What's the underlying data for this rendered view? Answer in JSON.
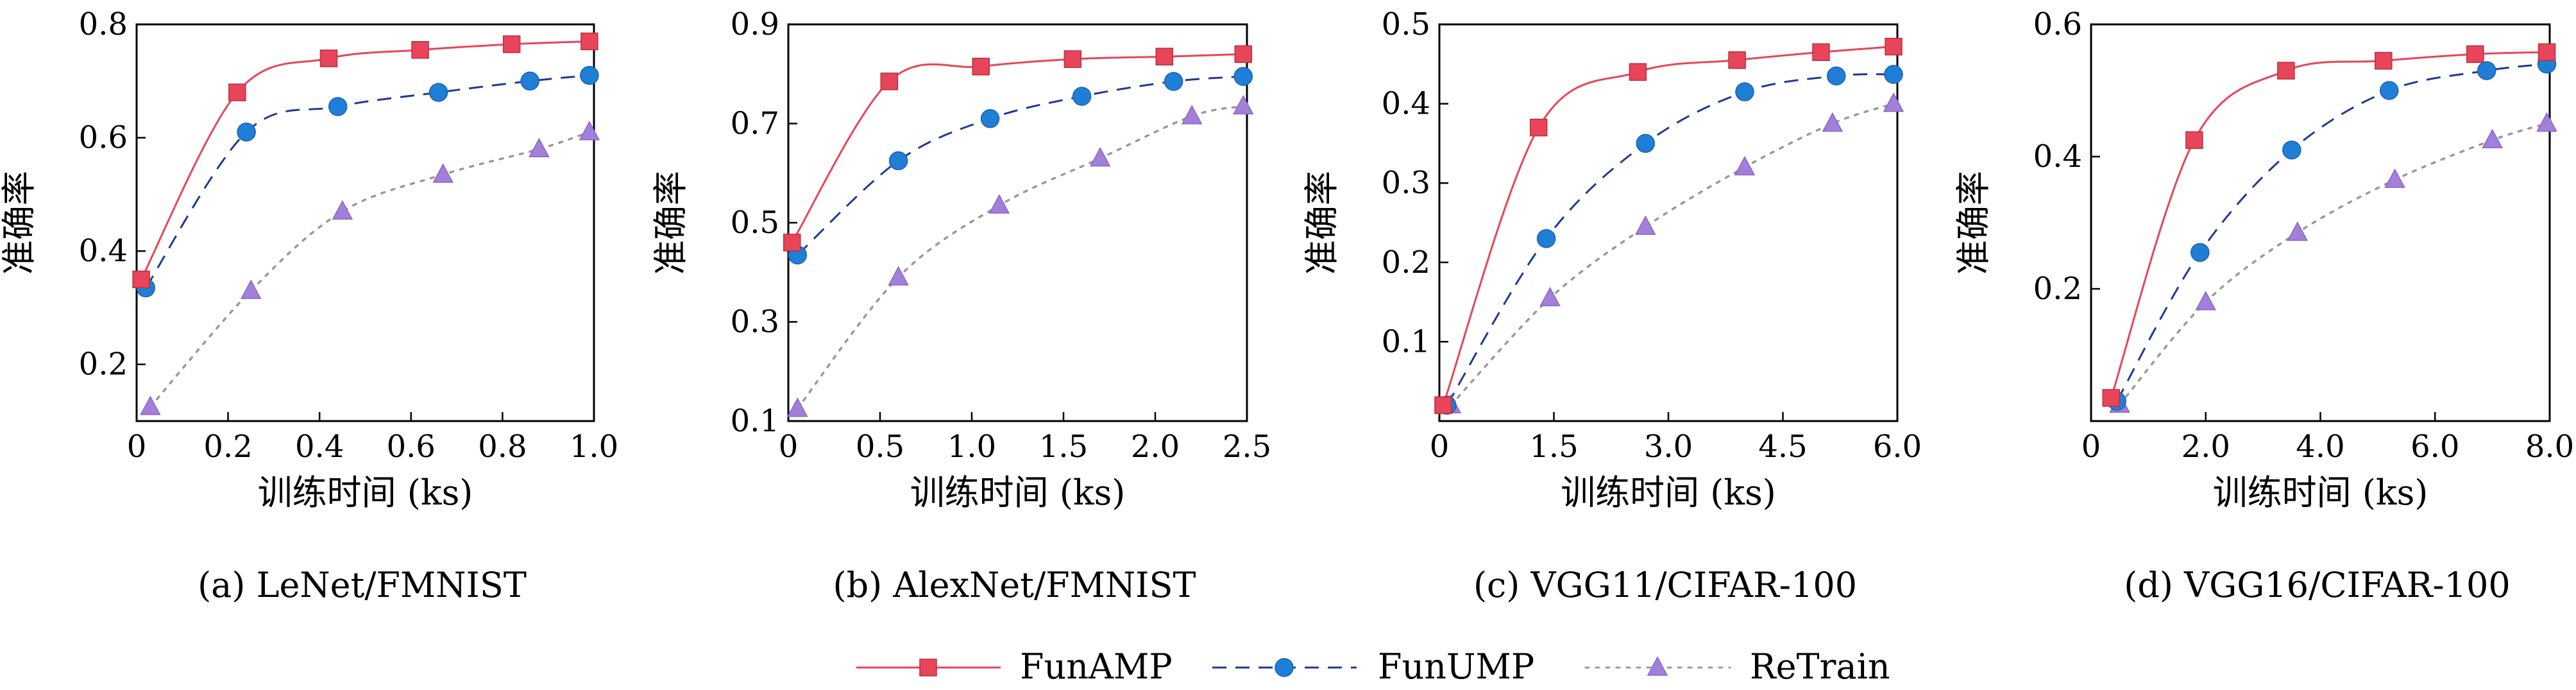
{
  "legend": {
    "entries": [
      {
        "label": "FunAMP",
        "color": "#e8455a",
        "marker_color": "#e8455a",
        "marker": "square",
        "dash": "solid"
      },
      {
        "label": "FunUMP",
        "color": "#1f3a93",
        "marker_color": "#1f7fd6",
        "marker": "circle",
        "dash": "dashed"
      },
      {
        "label": "ReTrain",
        "color": "#9a9a9a",
        "marker_color": "#a27fd9",
        "marker": "triangle",
        "dash": "dotted"
      }
    ]
  },
  "chart_data": [
    {
      "type": "line",
      "caption": "(a) LeNet/FMNIST",
      "xlabel": "训练时间 (ks)",
      "ylabel": "准确率",
      "xlim": [
        0,
        1.0
      ],
      "ylim": [
        0.1,
        0.8
      ],
      "xticks": [
        "0",
        "0.2",
        "0.4",
        "0.6",
        "0.8",
        "1.0"
      ],
      "xtick_values": [
        0,
        0.2,
        0.4,
        0.6,
        0.8,
        1.0
      ],
      "yticks": [
        "0.2",
        "0.4",
        "0.6",
        "0.8"
      ],
      "ytick_values": [
        0.2,
        0.4,
        0.6,
        0.8
      ],
      "series": [
        {
          "name": "FunAMP",
          "x": [
            0.01,
            0.22,
            0.42,
            0.62,
            0.82,
            0.99
          ],
          "y": [
            0.35,
            0.68,
            0.74,
            0.755,
            0.765,
            0.77
          ]
        },
        {
          "name": "FunUMP",
          "x": [
            0.02,
            0.24,
            0.44,
            0.66,
            0.86,
            0.99
          ],
          "y": [
            0.335,
            0.61,
            0.655,
            0.68,
            0.7,
            0.71
          ]
        },
        {
          "name": "ReTrain",
          "x": [
            0.03,
            0.25,
            0.45,
            0.67,
            0.88,
            0.99
          ],
          "y": [
            0.125,
            0.33,
            0.47,
            0.535,
            0.58,
            0.61
          ]
        }
      ]
    },
    {
      "type": "line",
      "caption": "(b) AlexNet/FMNIST",
      "xlabel": "训练时间 (ks)",
      "ylabel": "准确率",
      "xlim": [
        0,
        2.5
      ],
      "ylim": [
        0.1,
        0.9
      ],
      "xticks": [
        "0",
        "0.5",
        "1.0",
        "1.5",
        "2.0",
        "2.5"
      ],
      "xtick_values": [
        0,
        0.5,
        1.0,
        1.5,
        2.0,
        2.5
      ],
      "yticks": [
        "0.1",
        "0.3",
        "0.5",
        "0.7",
        "0.9"
      ],
      "ytick_values": [
        0.1,
        0.3,
        0.5,
        0.7,
        0.9
      ],
      "series": [
        {
          "name": "FunAMP",
          "x": [
            0.02,
            0.55,
            1.05,
            1.55,
            2.05,
            2.48
          ],
          "y": [
            0.46,
            0.785,
            0.815,
            0.83,
            0.835,
            0.84
          ]
        },
        {
          "name": "FunUMP",
          "x": [
            0.05,
            0.6,
            1.1,
            1.6,
            2.1,
            2.48
          ],
          "y": [
            0.435,
            0.625,
            0.71,
            0.755,
            0.785,
            0.795
          ]
        },
        {
          "name": "ReTrain",
          "x": [
            0.05,
            0.6,
            1.15,
            1.7,
            2.2,
            2.48
          ],
          "y": [
            0.125,
            0.39,
            0.535,
            0.63,
            0.715,
            0.735
          ]
        }
      ]
    },
    {
      "type": "line",
      "caption": "(c) VGG11/CIFAR-100",
      "xlabel": "训练时间 (ks)",
      "ylabel": "准确率",
      "xlim": [
        0,
        6.0
      ],
      "ylim": [
        0.0,
        0.5
      ],
      "xticks": [
        "0",
        "1.5",
        "3.0",
        "4.5",
        "6.0"
      ],
      "xtick_values": [
        0,
        1.5,
        3.0,
        4.5,
        6.0
      ],
      "yticks": [
        "0.1",
        "0.2",
        "0.3",
        "0.4",
        "0.5"
      ],
      "ytick_values": [
        0.1,
        0.2,
        0.3,
        0.4,
        0.5
      ],
      "series": [
        {
          "name": "FunAMP",
          "x": [
            0.05,
            1.3,
            2.6,
            3.9,
            5.0,
            5.95
          ],
          "y": [
            0.02,
            0.37,
            0.44,
            0.455,
            0.465,
            0.472
          ]
        },
        {
          "name": "FunUMP",
          "x": [
            0.1,
            1.4,
            2.7,
            4.0,
            5.2,
            5.95
          ],
          "y": [
            0.02,
            0.23,
            0.35,
            0.415,
            0.435,
            0.437
          ]
        },
        {
          "name": "ReTrain",
          "x": [
            0.15,
            1.45,
            2.7,
            4.0,
            5.15,
            5.95
          ],
          "y": [
            0.02,
            0.155,
            0.245,
            0.32,
            0.375,
            0.4
          ]
        }
      ]
    },
    {
      "type": "line",
      "caption": "(d) VGG16/CIFAR-100",
      "xlabel": "训练时间 (ks)",
      "ylabel": "准确率",
      "xlim": [
        0,
        8.0
      ],
      "ylim": [
        0.0,
        0.6
      ],
      "xticks": [
        "0",
        "2.0",
        "4.0",
        "6.0",
        "8.0"
      ],
      "xtick_values": [
        0,
        2.0,
        4.0,
        6.0,
        8.0
      ],
      "yticks": [
        "0.2",
        "0.4",
        "0.6"
      ],
      "ytick_values": [
        0.2,
        0.4,
        0.6
      ],
      "series": [
        {
          "name": "FunAMP",
          "x": [
            0.35,
            1.8,
            3.4,
            5.1,
            6.7,
            7.95
          ],
          "y": [
            0.035,
            0.425,
            0.53,
            0.545,
            0.555,
            0.558
          ]
        },
        {
          "name": "FunUMP",
          "x": [
            0.45,
            1.9,
            3.5,
            5.2,
            6.9,
            7.95
          ],
          "y": [
            0.03,
            0.255,
            0.41,
            0.5,
            0.53,
            0.54
          ]
        },
        {
          "name": "ReTrain",
          "x": [
            0.5,
            2.0,
            3.6,
            5.3,
            7.0,
            7.95
          ],
          "y": [
            0.025,
            0.18,
            0.285,
            0.365,
            0.425,
            0.45
          ]
        }
      ]
    }
  ]
}
